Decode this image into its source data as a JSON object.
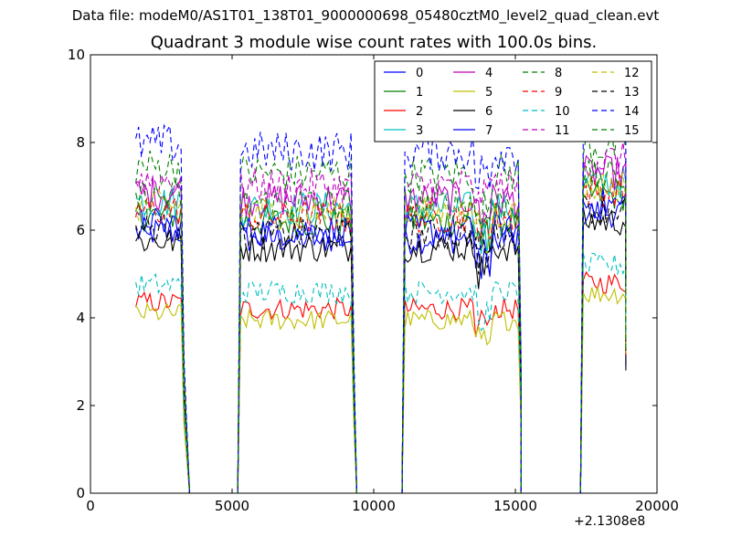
{
  "header": {
    "suptitle": "Data file: modeM0/AS1T01_138T01_9000000698_05480cztM0_level2_quad_clean.evt"
  },
  "chart_data": {
    "type": "line",
    "title": "Quadrant 3 module wise count rates with 100.0s bins.",
    "xlabel": "",
    "ylabel": "",
    "xlim": [
      0,
      20000
    ],
    "ylim": [
      0,
      10
    ],
    "xticks": [
      0,
      5000,
      10000,
      15000,
      20000
    ],
    "xtick_labels": [
      "0",
      "5000",
      "10000",
      "15000",
      "20000"
    ],
    "yticks": [
      0,
      2,
      4,
      6,
      8,
      10
    ],
    "ytick_labels": [
      "0",
      "2",
      "4",
      "6",
      "8",
      "10"
    ],
    "x_offset_label": "+2.1308e8",
    "grid": false,
    "legend_position": "top-right",
    "legend_columns": 4,
    "segments": [
      {
        "x_start": 1600,
        "x_end": 3200,
        "zero_end": 3500
      },
      {
        "x_start": 5300,
        "x_end": 9200,
        "zero_end": 9400
      },
      {
        "x_start": 11100,
        "x_end": 15100,
        "zero_end": 15200
      },
      {
        "x_start": 17400,
        "x_end": 18900,
        "zero_end": 18900
      }
    ],
    "zero_gaps": [
      [
        3500,
        5200
      ],
      [
        9400,
        11000
      ],
      [
        15200,
        17300
      ]
    ],
    "series": [
      {
        "name": "0",
        "color": "#0000ff",
        "style": "solid",
        "level": 5.8
      },
      {
        "name": "1",
        "color": "#008000",
        "style": "solid",
        "level": 6.2
      },
      {
        "name": "2",
        "color": "#ff0000",
        "style": "solid",
        "level": 4.2
      },
      {
        "name": "3",
        "color": "#00bfbf",
        "style": "solid",
        "level": 6.5
      },
      {
        "name": "4",
        "color": "#bf00bf",
        "style": "solid",
        "level": 6.7
      },
      {
        "name": "5",
        "color": "#bfbf00",
        "style": "solid",
        "level": 3.95
      },
      {
        "name": "6",
        "color": "#000000",
        "style": "solid",
        "level": 5.6
      },
      {
        "name": "7",
        "color": "#0000ff",
        "style": "solid",
        "level": 6.0
      },
      {
        "name": "8",
        "color": "#008000",
        "style": "dashed",
        "level": 7.3
      },
      {
        "name": "9",
        "color": "#ff0000",
        "style": "dashed",
        "level": 6.3
      },
      {
        "name": "10",
        "color": "#00bfbf",
        "style": "dashed",
        "level": 4.6
      },
      {
        "name": "11",
        "color": "#bf00bf",
        "style": "dashed",
        "level": 7.0
      },
      {
        "name": "12",
        "color": "#bfbf00",
        "style": "dashed",
        "level": 6.4
      },
      {
        "name": "13",
        "color": "#000000",
        "style": "dashed",
        "level": 5.9
      },
      {
        "name": "14",
        "color": "#0000ff",
        "style": "dashed",
        "level": 7.8
      },
      {
        "name": "15",
        "color": "#008000",
        "style": "dashed",
        "level": 6.6
      }
    ]
  }
}
